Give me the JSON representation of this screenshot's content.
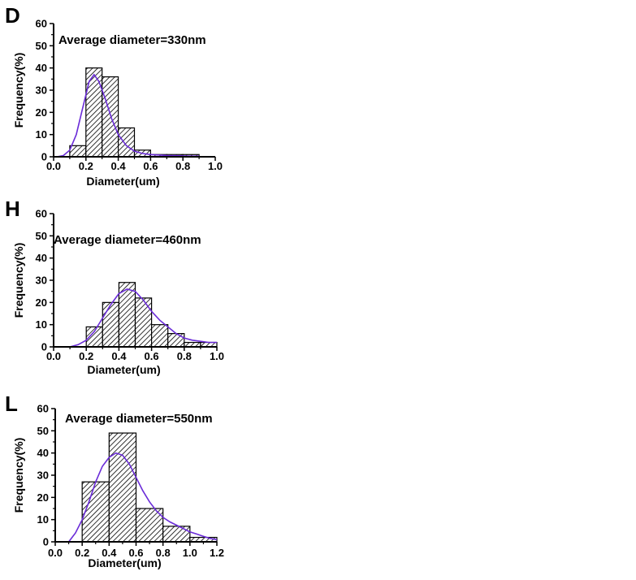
{
  "chart_data": [
    {
      "panel": "D",
      "type": "bar",
      "annotation": "Average diameter=330nm",
      "xlabel": "Diameter(um)",
      "ylabel": "Frequency(%)",
      "xlim": [
        0.0,
        1.0
      ],
      "ylim": [
        0,
        60
      ],
      "xticks": [
        "0.0",
        "0.2",
        "0.4",
        "0.6",
        "0.8",
        "1.0"
      ],
      "yticks": [
        "0",
        "10",
        "20",
        "30",
        "40",
        "50",
        "60"
      ],
      "bins": [
        [
          0.1,
          0.2
        ],
        [
          0.2,
          0.3
        ],
        [
          0.3,
          0.4
        ],
        [
          0.4,
          0.5
        ],
        [
          0.5,
          0.6
        ],
        [
          0.6,
          0.7
        ],
        [
          0.7,
          0.8
        ],
        [
          0.8,
          0.9
        ]
      ],
      "values": [
        5,
        40,
        36,
        13,
        3,
        1,
        1,
        1
      ],
      "fit_curve": {
        "x": [
          0.02,
          0.06,
          0.1,
          0.14,
          0.18,
          0.22,
          0.25,
          0.28,
          0.32,
          0.36,
          0.4,
          0.45,
          0.5,
          0.55,
          0.6,
          0.65,
          0.7,
          0.75,
          0.8,
          0.85,
          0.9
        ],
        "y": [
          0,
          0.5,
          3,
          10,
          22,
          34,
          37,
          34,
          26,
          17,
          10,
          5,
          2.5,
          1.5,
          1,
          0.8,
          0.6,
          0.5,
          0.4,
          0.3,
          0.3
        ]
      },
      "colors": {
        "bar_fill": "#ffffff",
        "hatch": "#000000",
        "curve": "#6a2bd8"
      }
    },
    {
      "panel": "H",
      "type": "bar",
      "annotation": "Average diameter=460nm",
      "xlabel": "Diameter(um)",
      "ylabel": "Frequency(%)",
      "xlim": [
        0.0,
        1.0
      ],
      "ylim": [
        0,
        60
      ],
      "xticks": [
        "0.0",
        "0.2",
        "0.4",
        "0.6",
        "0.8",
        "1.0"
      ],
      "yticks": [
        "0",
        "10",
        "20",
        "30",
        "40",
        "50",
        "60"
      ],
      "bins": [
        [
          0.2,
          0.3
        ],
        [
          0.3,
          0.4
        ],
        [
          0.4,
          0.5
        ],
        [
          0.5,
          0.6
        ],
        [
          0.6,
          0.7
        ],
        [
          0.7,
          0.8
        ],
        [
          0.8,
          0.9
        ],
        [
          0.9,
          1.0
        ]
      ],
      "values": [
        9,
        20,
        29,
        22,
        10,
        6,
        2,
        2
      ],
      "fit_curve": {
        "x": [
          0.1,
          0.15,
          0.2,
          0.25,
          0.3,
          0.35,
          0.4,
          0.45,
          0.5,
          0.55,
          0.6,
          0.65,
          0.7,
          0.75,
          0.8,
          0.85,
          0.9,
          0.95,
          1.0
        ],
        "y": [
          0,
          1,
          3,
          7,
          13,
          19,
          24,
          26,
          25,
          21,
          16,
          12,
          9,
          6,
          4,
          3,
          2.5,
          2,
          2
        ]
      },
      "colors": {
        "bar_fill": "#ffffff",
        "hatch": "#000000",
        "curve": "#6a2bd8"
      }
    },
    {
      "panel": "L",
      "type": "bar",
      "annotation": "Average diameter=550nm",
      "xlabel": "Diameter(um)",
      "ylabel": "Frequency(%)",
      "xlim": [
        0.0,
        1.2
      ],
      "ylim": [
        0,
        60
      ],
      "xticks": [
        "0.0",
        "0.2",
        "0.4",
        "0.6",
        "0.8",
        "1.0",
        "1.2"
      ],
      "yticks": [
        "0",
        "10",
        "20",
        "30",
        "40",
        "50",
        "60"
      ],
      "bins": [
        [
          0.2,
          0.4
        ],
        [
          0.4,
          0.6
        ],
        [
          0.6,
          0.8
        ],
        [
          0.8,
          1.0
        ],
        [
          1.0,
          1.2
        ]
      ],
      "values": [
        27,
        49,
        15,
        7,
        2
      ],
      "fit_curve": {
        "x": [
          0.1,
          0.15,
          0.2,
          0.25,
          0.3,
          0.35,
          0.4,
          0.45,
          0.5,
          0.55,
          0.6,
          0.65,
          0.7,
          0.75,
          0.8,
          0.85,
          0.9,
          0.95,
          1.0,
          1.05,
          1.1,
          1.15,
          1.2
        ],
        "y": [
          0,
          4,
          10,
          18,
          27,
          34,
          38,
          40,
          39,
          35,
          29,
          23,
          18,
          14,
          11,
          9,
          7.5,
          6,
          4.5,
          3.5,
          2.5,
          1.5,
          1
        ]
      },
      "colors": {
        "bar_fill": "#ffffff",
        "hatch": "#000000",
        "curve": "#6a2bd8"
      }
    }
  ]
}
